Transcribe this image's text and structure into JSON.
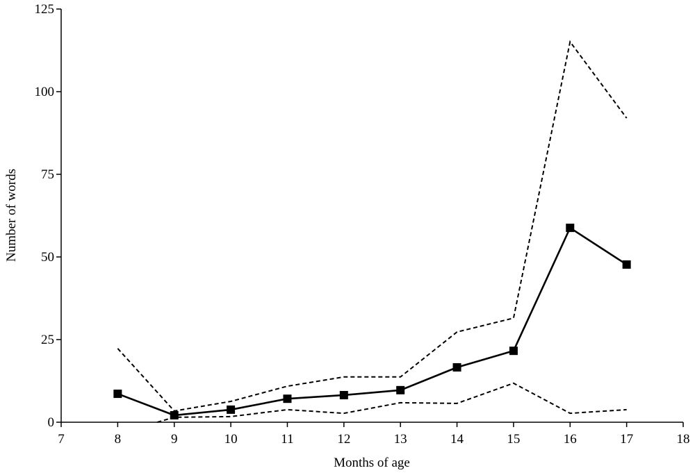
{
  "chart_data": {
    "type": "line",
    "x_label": "Months of age",
    "y_label": "Number of words",
    "xlim": [
      7,
      18
    ],
    "xticks": [
      7,
      8,
      9,
      10,
      11,
      12,
      13,
      14,
      15,
      16,
      17,
      18
    ],
    "ylim": [
      0,
      125
    ],
    "yticks": [
      0,
      25,
      50,
      75,
      100,
      125
    ],
    "series": [
      {
        "color": "#000000",
        "style": "solid",
        "marker": "square",
        "x": [
          8,
          9,
          10,
          11,
          12,
          13,
          14,
          15,
          16,
          17
        ],
        "values": [
          8.6,
          2.1,
          3.8,
          7.1,
          8.2,
          9.7,
          16.6,
          21.6,
          58.8,
          47.7
        ]
      },
      {
        "color": "#000000",
        "style": "dashed",
        "x": [
          8,
          9,
          10,
          11,
          12,
          13,
          14,
          15,
          16,
          17
        ],
        "values": [
          22.3,
          3.4,
          6.3,
          10.9,
          13.7,
          13.7,
          27.3,
          31.5,
          115.1,
          92
        ]
      },
      {
        "color": "#000000",
        "style": "dashed",
        "x": [
          8.7,
          9,
          10,
          11,
          12,
          13,
          14,
          15,
          16,
          17
        ],
        "values": [
          0,
          1.5,
          1.7,
          3.8,
          2.7,
          5.9,
          5.7,
          11.8,
          2.7,
          3.8
        ]
      }
    ]
  }
}
